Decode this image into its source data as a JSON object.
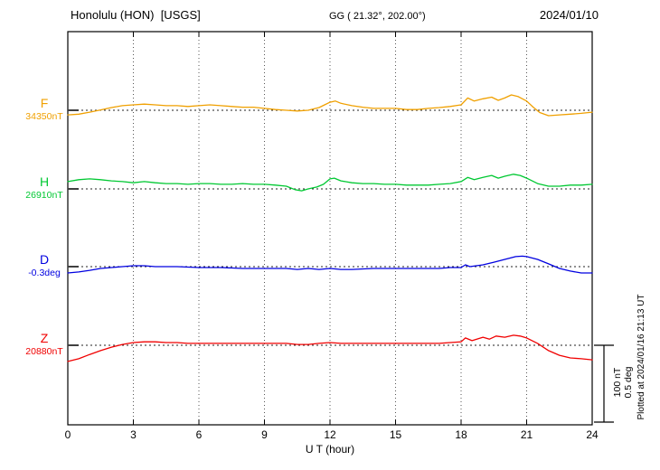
{
  "header": {
    "station": "Honolulu (HON)  [USGS]",
    "coordinates": "GG ( 21.32°, 202.00°)",
    "date": "2024/01/10"
  },
  "footer": {
    "plotted_at": "Plotted at 2024/01/16 21:13 UT"
  },
  "scale_bar": {
    "nt_label": "100 nT",
    "deg_label": "0.5 deg"
  },
  "chart_data": {
    "type": "line",
    "title": "Honolulu (HON) [USGS] magnetogram for 2024/01/10",
    "xlabel": "U T (hour)",
    "xlim": [
      0,
      24
    ],
    "xticks": [
      0,
      3,
      6,
      9,
      12,
      15,
      18,
      21,
      24
    ],
    "grid": "dotted vertical at 3-hour intervals, dotted horizontal baseline per trace",
    "scale_per_division": {
      "nT": 100,
      "deg": 0.5
    },
    "series": [
      {
        "name": "F",
        "baseline_label": "34350nT",
        "baseline_value": 34350,
        "unit": "nT",
        "color": "#f0a000",
        "points": [
          [
            0,
            -6
          ],
          [
            0.5,
            -5
          ],
          [
            1,
            -2.5
          ],
          [
            1.5,
            0.5
          ],
          [
            2,
            3.5
          ],
          [
            2.5,
            6
          ],
          [
            3,
            7
          ],
          [
            3.5,
            8
          ],
          [
            4,
            7
          ],
          [
            4.5,
            6
          ],
          [
            5,
            6
          ],
          [
            5.5,
            5
          ],
          [
            6,
            6
          ],
          [
            6.5,
            7
          ],
          [
            7,
            6
          ],
          [
            7.5,
            5
          ],
          [
            8,
            4
          ],
          [
            8.5,
            4
          ],
          [
            9,
            2.5
          ],
          [
            9.5,
            1
          ],
          [
            10,
            0
          ],
          [
            10.5,
            -1
          ],
          [
            11,
            0
          ],
          [
            11.5,
            3.5
          ],
          [
            11.75,
            7
          ],
          [
            12,
            10.5
          ],
          [
            12.25,
            12
          ],
          [
            12.5,
            9
          ],
          [
            13,
            6
          ],
          [
            13.5,
            4
          ],
          [
            14,
            2.5
          ],
          [
            14.5,
            2.5
          ],
          [
            15,
            2.5
          ],
          [
            15.5,
            1
          ],
          [
            16,
            1
          ],
          [
            16.5,
            2.5
          ],
          [
            17,
            3.5
          ],
          [
            17.5,
            5
          ],
          [
            18,
            7
          ],
          [
            18.3,
            16
          ],
          [
            18.6,
            12
          ],
          [
            19,
            15
          ],
          [
            19.4,
            17
          ],
          [
            19.7,
            13
          ],
          [
            20,
            16
          ],
          [
            20.3,
            20
          ],
          [
            20.6,
            18
          ],
          [
            21,
            12
          ],
          [
            21.3,
            4
          ],
          [
            21.6,
            -3
          ],
          [
            22,
            -7
          ],
          [
            22.5,
            -6
          ],
          [
            23,
            -5
          ],
          [
            23.5,
            -4
          ],
          [
            24,
            -2.5
          ]
        ]
      },
      {
        "name": "H",
        "baseline_label": "26910nT",
        "baseline_value": 26910,
        "unit": "nT",
        "color": "#00c832",
        "points": [
          [
            0,
            9.5
          ],
          [
            0.5,
            12
          ],
          [
            1,
            13
          ],
          [
            1.5,
            12
          ],
          [
            2,
            10.5
          ],
          [
            2.5,
            9.5
          ],
          [
            3,
            8
          ],
          [
            3.5,
            9.5
          ],
          [
            4,
            8
          ],
          [
            4.5,
            7
          ],
          [
            5,
            7
          ],
          [
            5.5,
            6
          ],
          [
            6,
            7
          ],
          [
            6.5,
            7
          ],
          [
            7,
            6
          ],
          [
            7.5,
            6
          ],
          [
            8,
            7
          ],
          [
            8.5,
            6
          ],
          [
            9,
            6
          ],
          [
            9.5,
            5
          ],
          [
            10,
            3.5
          ],
          [
            10.4,
            -1
          ],
          [
            10.7,
            -2.5
          ],
          [
            11,
            0
          ],
          [
            11.4,
            2.5
          ],
          [
            11.7,
            6
          ],
          [
            12,
            13
          ],
          [
            12.2,
            14
          ],
          [
            12.5,
            10.5
          ],
          [
            13,
            8
          ],
          [
            13.5,
            7
          ],
          [
            14,
            7
          ],
          [
            14.5,
            6
          ],
          [
            15,
            6
          ],
          [
            15.5,
            5
          ],
          [
            16,
            5
          ],
          [
            16.5,
            5
          ],
          [
            17,
            6
          ],
          [
            17.5,
            7
          ],
          [
            18,
            9.5
          ],
          [
            18.3,
            15
          ],
          [
            18.6,
            12
          ],
          [
            19,
            15
          ],
          [
            19.4,
            17.5
          ],
          [
            19.7,
            14
          ],
          [
            20,
            16.5
          ],
          [
            20.4,
            19
          ],
          [
            20.7,
            17.5
          ],
          [
            21,
            14
          ],
          [
            21.5,
            7
          ],
          [
            22,
            3.5
          ],
          [
            22.5,
            3.5
          ],
          [
            23,
            5
          ],
          [
            23.5,
            5
          ],
          [
            24,
            6
          ]
        ]
      },
      {
        "name": "D",
        "baseline_label": "-0.3deg",
        "baseline_value": -0.3,
        "unit": "deg",
        "color": "#0000e0",
        "points": [
          [
            0,
            -0.041
          ],
          [
            0.5,
            -0.035
          ],
          [
            1,
            -0.024
          ],
          [
            1.5,
            -0.012
          ],
          [
            2,
            -0.006
          ],
          [
            2.5,
            0
          ],
          [
            3,
            0.006
          ],
          [
            3.5,
            0.006
          ],
          [
            4,
            0
          ],
          [
            5,
            0
          ],
          [
            6,
            -0.006
          ],
          [
            7,
            -0.006
          ],
          [
            8,
            -0.012
          ],
          [
            9,
            -0.012
          ],
          [
            10,
            -0.012
          ],
          [
            10.5,
            -0.018
          ],
          [
            11,
            -0.012
          ],
          [
            11.5,
            -0.018
          ],
          [
            12,
            -0.012
          ],
          [
            12.5,
            -0.018
          ],
          [
            13,
            -0.018
          ],
          [
            14,
            -0.012
          ],
          [
            15,
            -0.012
          ],
          [
            16,
            -0.012
          ],
          [
            17,
            -0.012
          ],
          [
            17.5,
            -0.006
          ],
          [
            18,
            -0.006
          ],
          [
            18.2,
            0.012
          ],
          [
            18.4,
            0
          ],
          [
            19,
            0.012
          ],
          [
            19.5,
            0.029
          ],
          [
            20,
            0.047
          ],
          [
            20.5,
            0.065
          ],
          [
            20.8,
            0.068
          ],
          [
            21,
            0.065
          ],
          [
            21.5,
            0.047
          ],
          [
            22,
            0.018
          ],
          [
            22.5,
            -0.012
          ],
          [
            23,
            -0.029
          ],
          [
            23.5,
            -0.041
          ],
          [
            24,
            -0.041
          ]
        ]
      },
      {
        "name": "Z",
        "baseline_label": "20880nT",
        "baseline_value": 20880,
        "unit": "nT",
        "color": "#f00000",
        "points": [
          [
            0,
            -21
          ],
          [
            0.5,
            -17.5
          ],
          [
            1,
            -12
          ],
          [
            1.5,
            -7
          ],
          [
            2,
            -2.5
          ],
          [
            2.5,
            1
          ],
          [
            3,
            3.5
          ],
          [
            3.5,
            4.5
          ],
          [
            4,
            4.5
          ],
          [
            4.5,
            3.5
          ],
          [
            5,
            3.5
          ],
          [
            5.5,
            2.5
          ],
          [
            6,
            2.5
          ],
          [
            7,
            2.5
          ],
          [
            8,
            2.5
          ],
          [
            9,
            2.5
          ],
          [
            10,
            2.5
          ],
          [
            10.5,
            1
          ],
          [
            11,
            1
          ],
          [
            11.5,
            2.5
          ],
          [
            12,
            3.5
          ],
          [
            12.5,
            2.5
          ],
          [
            13,
            2.5
          ],
          [
            14,
            2.5
          ],
          [
            15,
            2.5
          ],
          [
            16,
            2.5
          ],
          [
            17,
            2.5
          ],
          [
            17.5,
            3.5
          ],
          [
            18,
            4.5
          ],
          [
            18.2,
            9.5
          ],
          [
            18.5,
            6
          ],
          [
            19,
            10.5
          ],
          [
            19.3,
            8
          ],
          [
            19.6,
            12
          ],
          [
            20,
            10.5
          ],
          [
            20.4,
            13
          ],
          [
            20.7,
            12
          ],
          [
            21,
            9.5
          ],
          [
            21.5,
            2.5
          ],
          [
            22,
            -7
          ],
          [
            22.5,
            -13
          ],
          [
            23,
            -16.5
          ],
          [
            23.5,
            -17.5
          ],
          [
            24,
            -19
          ]
        ]
      }
    ]
  }
}
